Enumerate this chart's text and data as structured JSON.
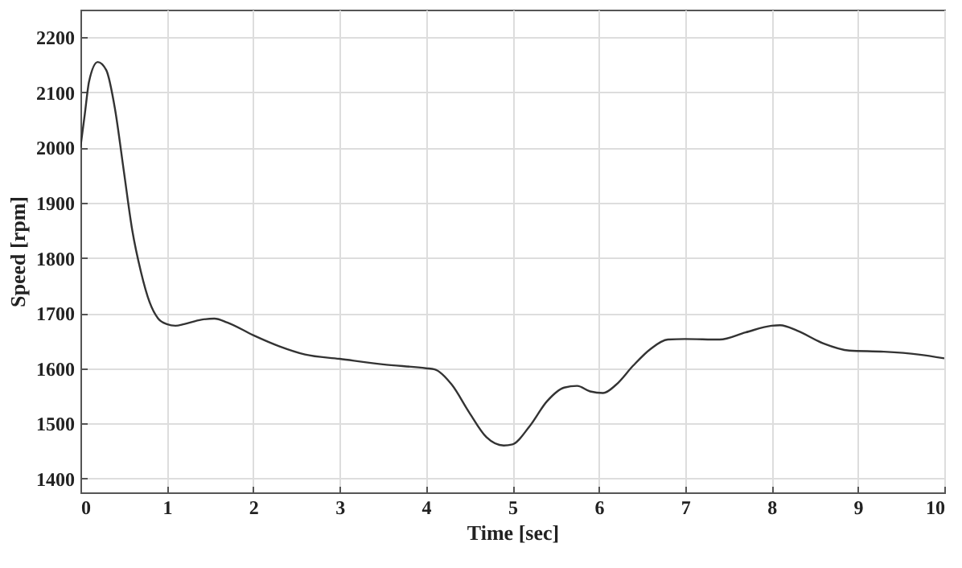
{
  "chart_data": {
    "type": "line",
    "xlabel": "Time [sec]",
    "ylabel": "Speed [rpm]",
    "xlim": [
      0,
      10
    ],
    "xticks": [
      0,
      1,
      2,
      3,
      4,
      5,
      6,
      7,
      8,
      9,
      10
    ],
    "ylim": [
      1375,
      2250
    ],
    "yticks": [
      1400,
      1500,
      1600,
      1700,
      1800,
      1900,
      2000,
      2100,
      2200
    ],
    "grid": true,
    "series": [
      {
        "color": "#333333",
        "x": [
          0,
          0.05,
          0.1,
          0.2,
          0.3,
          0.4,
          0.5,
          0.6,
          0.7,
          0.8,
          0.9,
          1.0,
          1.1,
          1.2,
          1.4,
          1.55,
          1.7,
          2,
          2.3,
          2.6,
          3,
          3.5,
          4,
          4.1,
          4.3,
          4.5,
          4.7,
          4.9,
          5.0,
          5.2,
          5.4,
          5.6,
          5.75,
          5.9,
          6.05,
          6.2,
          6.4,
          6.6,
          6.8,
          7,
          7.4,
          7.7,
          8.0,
          8.1,
          8.3,
          8.6,
          8.9,
          9.3,
          9.7,
          10
        ],
        "values": [
          2000,
          2060,
          2120,
          2155,
          2140,
          2070,
          1960,
          1850,
          1775,
          1720,
          1690,
          1680,
          1677,
          1680,
          1688,
          1690,
          1683,
          1660,
          1640,
          1625,
          1617,
          1607,
          1600,
          1598,
          1570,
          1520,
          1475,
          1460,
          1462,
          1495,
          1540,
          1565,
          1568,
          1558,
          1555,
          1570,
          1605,
          1635,
          1652,
          1653,
          1652,
          1665,
          1677,
          1678,
          1668,
          1645,
          1632,
          1630,
          1625,
          1618
        ]
      }
    ]
  }
}
